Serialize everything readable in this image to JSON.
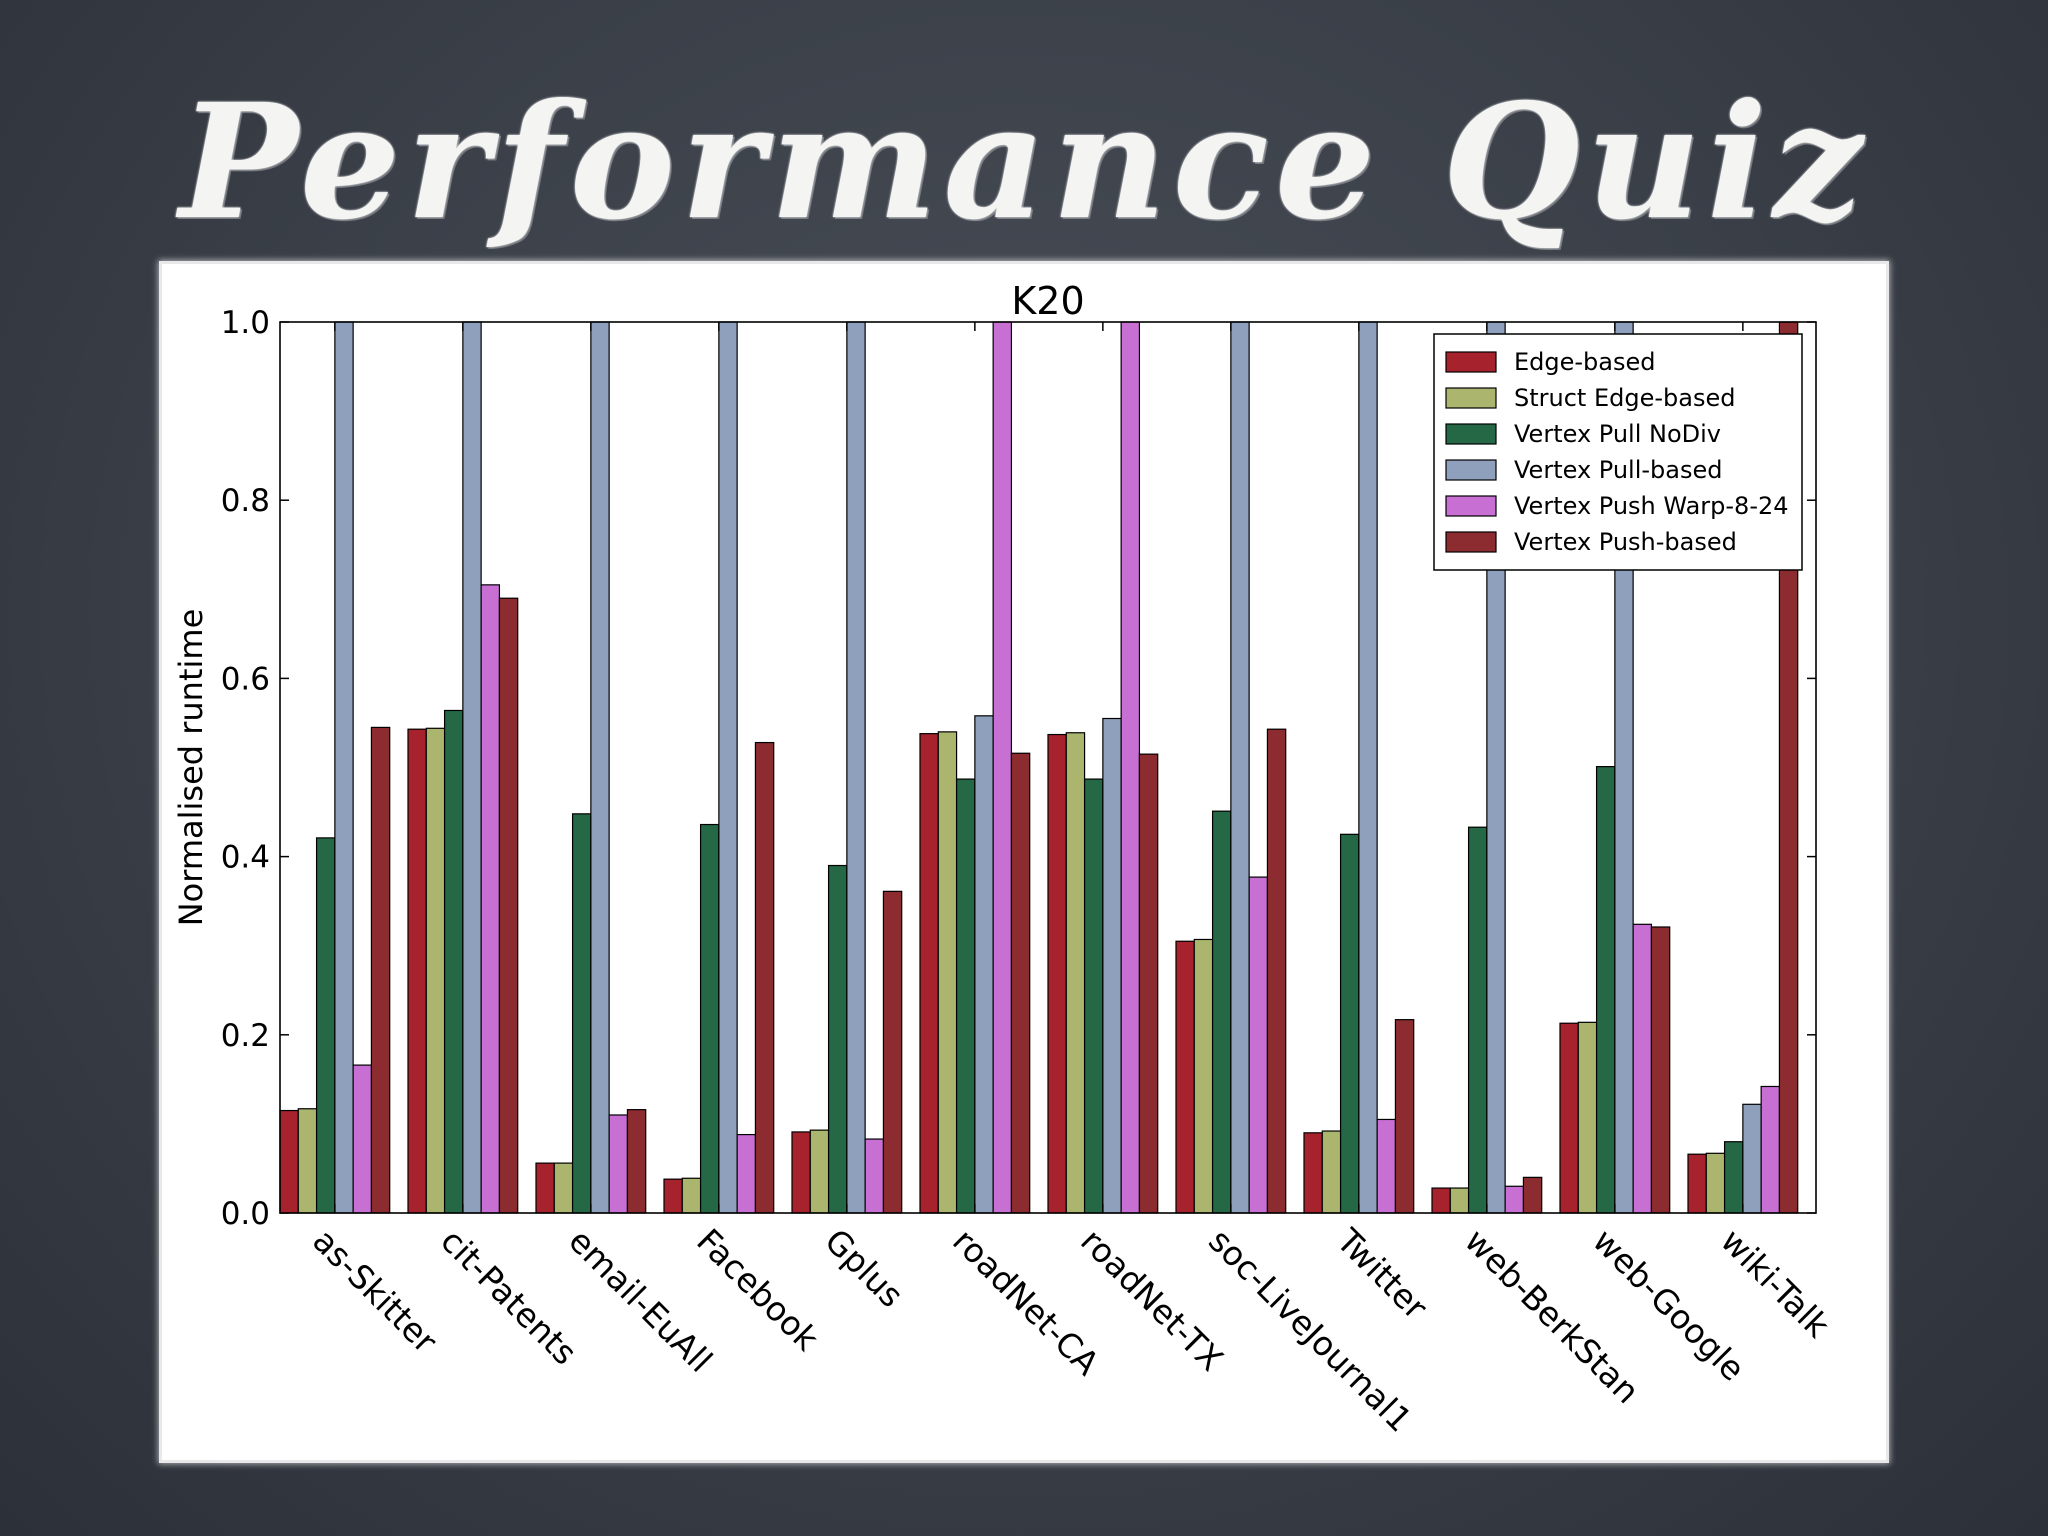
{
  "slide": {
    "title": "Performance Quiz"
  },
  "chart_data": {
    "type": "bar",
    "title": "K20",
    "xlabel": "",
    "ylabel": "Normalised runtime",
    "ylim": [
      0,
      1.0
    ],
    "yticks": [
      "0.0",
      "0.2",
      "0.4",
      "0.6",
      "0.8",
      "1.0"
    ],
    "legend_position": "top-right",
    "categories": [
      "as-Skitter",
      "cit-Patents",
      "email-EuAll",
      "Facebook",
      "Gplus",
      "roadNet-CA",
      "roadNet-TX",
      "soc-LiveJournal1",
      "Twitter",
      "web-BerkStan",
      "web-Google",
      "wiki-Talk"
    ],
    "series": [
      {
        "name": "Edge-based",
        "color": "#a6222c",
        "values": [
          0.115,
          0.543,
          0.056,
          0.038,
          0.091,
          0.538,
          0.537,
          0.305,
          0.09,
          0.028,
          0.213,
          0.066
        ]
      },
      {
        "name": "Struct Edge-based",
        "color": "#acb56e",
        "values": [
          0.117,
          0.544,
          0.056,
          0.039,
          0.093,
          0.54,
          0.539,
          0.307,
          0.092,
          0.028,
          0.214,
          0.067
        ]
      },
      {
        "name": "Vertex Pull NoDiv",
        "color": "#256846",
        "values": [
          0.421,
          0.564,
          0.448,
          0.436,
          0.39,
          0.487,
          0.487,
          0.451,
          0.425,
          0.433,
          0.501,
          0.08
        ]
      },
      {
        "name": "Vertex Pull-based",
        "color": "#8fa0bc",
        "values": [
          1.0,
          1.0,
          1.0,
          1.0,
          1.0,
          0.558,
          0.555,
          1.0,
          1.0,
          1.0,
          1.0,
          0.122
        ]
      },
      {
        "name": "Vertex Push Warp-8-24",
        "color": "#c86fd4",
        "values": [
          0.166,
          0.705,
          0.11,
          0.088,
          0.083,
          1.0,
          1.0,
          0.377,
          0.105,
          0.03,
          0.324,
          0.142
        ]
      },
      {
        "name": "Vertex Push-based",
        "color": "#8c2b30",
        "values": [
          0.545,
          0.69,
          0.116,
          0.528,
          0.361,
          0.516,
          0.515,
          0.543,
          0.217,
          0.04,
          0.321,
          1.0
        ]
      }
    ]
  }
}
